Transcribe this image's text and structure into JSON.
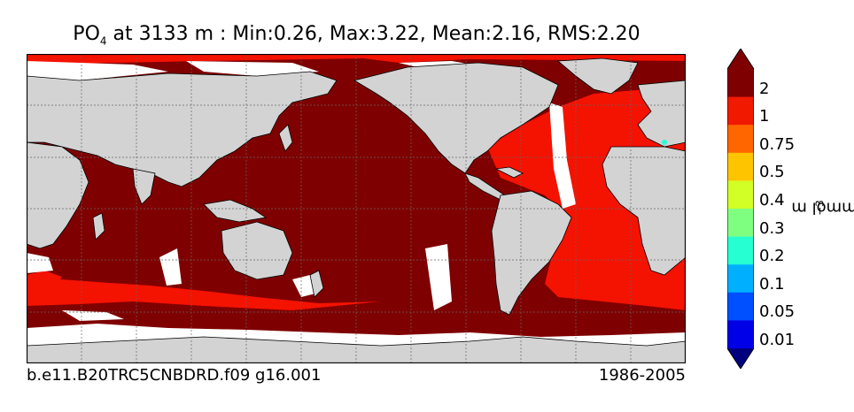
{
  "title": {
    "variable": "PO",
    "subscript": "4",
    "rest": " at 3133 m : Min:0.26, Max:3.22, Mean:2.16, RMS:2.20"
  },
  "caption": {
    "left": "b.e11.B20TRC5CNBDRD.f09 g16.001",
    "right": "1986-2005"
  },
  "colorbar": {
    "unit": "mmol m",
    "unit_exponent": "−3",
    "labels": [
      "2",
      "1",
      "0.75",
      "0.5",
      "0.4",
      "0.3",
      "0.2",
      "0.1",
      "0.05",
      "0.01"
    ],
    "colors_top_to_bottom": [
      "#7f0000",
      "#f01a00",
      "#ff6600",
      "#ffc400",
      "#d2ff26",
      "#7fff80",
      "#26ffd2",
      "#00b0ff",
      "#0050ff",
      "#0000e6",
      "#00007f"
    ]
  },
  "map_colors": {
    "land": "#d3d3d3",
    "no_data": "#ffffff",
    "above_2": "#7f0000",
    "range_1_2": "#f41200",
    "grid": "#666666"
  }
}
